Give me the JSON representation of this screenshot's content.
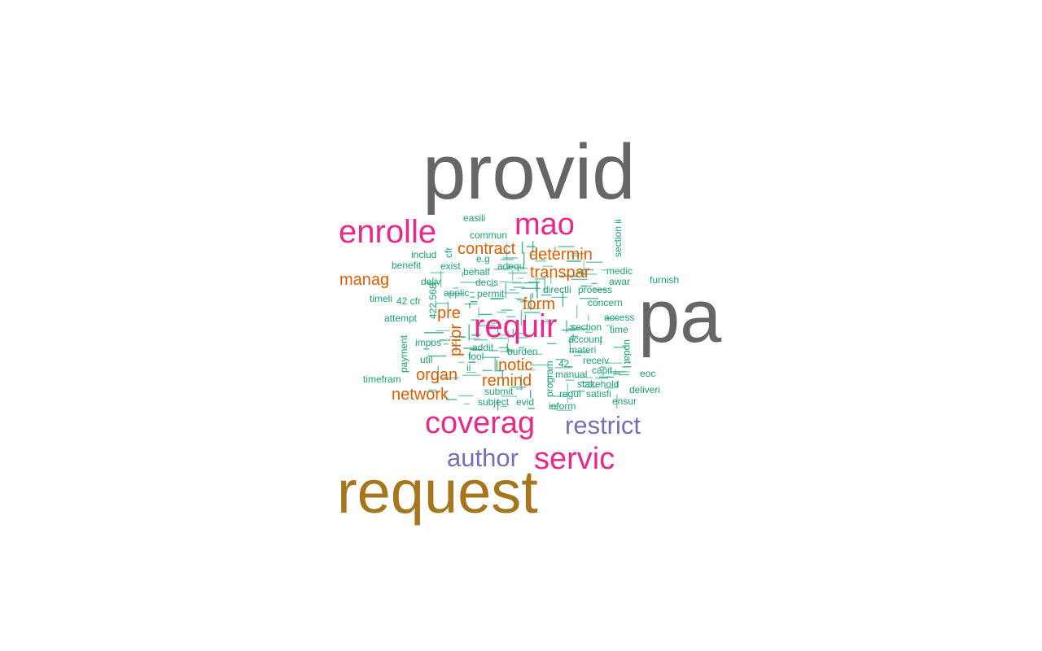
{
  "colors": {
    "background": "#ffffff",
    "tier1": "#666666",
    "tier2": "#a6761d",
    "tier3": "#e7298a",
    "tier4": "#7570b3",
    "tier5": "#d95f02",
    "tier6": "#1b9e77"
  },
  "words": [
    {
      "text": "provid",
      "color": "tier1"
    },
    {
      "text": "pa",
      "color": "tier1"
    },
    {
      "text": "request",
      "color": "tier2"
    },
    {
      "text": "enrolle",
      "color": "tier3"
    },
    {
      "text": "mao",
      "color": "tier3"
    },
    {
      "text": "requir",
      "color": "tier3"
    },
    {
      "text": "coverag",
      "color": "tier3"
    },
    {
      "text": "servic",
      "color": "tier3"
    },
    {
      "text": "restrict",
      "color": "tier4"
    },
    {
      "text": "author",
      "color": "tier4"
    },
    {
      "text": "contract",
      "color": "tier5"
    },
    {
      "text": "determin",
      "color": "tier5"
    },
    {
      "text": "transpar",
      "color": "tier5"
    },
    {
      "text": "manag",
      "color": "tier5"
    },
    {
      "text": "form",
      "color": "tier5"
    },
    {
      "text": "pre",
      "color": "tier5"
    },
    {
      "text": "prior",
      "color": "tier5"
    },
    {
      "text": "notic",
      "color": "tier5"
    },
    {
      "text": "remind",
      "color": "tier5"
    },
    {
      "text": "organ",
      "color": "tier5"
    },
    {
      "text": "network",
      "color": "tier5"
    },
    {
      "text": "easili",
      "color": "tier6"
    },
    {
      "text": "commun",
      "color": "tier6"
    },
    {
      "text": "includ",
      "color": "tier6"
    },
    {
      "text": "cfr",
      "color": "tier6"
    },
    {
      "text": "benefit",
      "color": "tier6"
    },
    {
      "text": "exist",
      "color": "tier6"
    },
    {
      "text": "e.g",
      "color": "tier6"
    },
    {
      "text": "adequ",
      "color": "tier6"
    },
    {
      "text": "deliv",
      "color": "tier6"
    },
    {
      "text": "decis",
      "color": "tier6"
    },
    {
      "text": "behalf",
      "color": "tier6"
    },
    {
      "text": "applic",
      "color": "tier6"
    },
    {
      "text": "permit",
      "color": "tier6"
    },
    {
      "text": "directli",
      "color": "tier6"
    },
    {
      "text": "process",
      "color": "tier6"
    },
    {
      "text": "timeli",
      "color": "tier6"
    },
    {
      "text": "42 cfr",
      "color": "tier6"
    },
    {
      "text": "422.568",
      "color": "tier6"
    },
    {
      "text": "attempt",
      "color": "tier6"
    },
    {
      "text": "payment",
      "color": "tier6"
    },
    {
      "text": "impos",
      "color": "tier6"
    },
    {
      "text": "addit",
      "color": "tier6"
    },
    {
      "text": "tool",
      "color": "tier6"
    },
    {
      "text": "util",
      "color": "tier6"
    },
    {
      "text": "ii",
      "color": "tier6"
    },
    {
      "text": "burden",
      "color": "tier6"
    },
    {
      "text": "materi",
      "color": "tier6"
    },
    {
      "text": "program",
      "color": "tier6"
    },
    {
      "text": "42",
      "color": "tier6"
    },
    {
      "text": "receiv",
      "color": "tier6"
    },
    {
      "text": "capit",
      "color": "tier6"
    },
    {
      "text": "manual",
      "color": "tier6"
    },
    {
      "text": "stakehold",
      "color": "tier6"
    },
    {
      "text": "submit",
      "color": "tier6"
    },
    {
      "text": "regul",
      "color": "tier6"
    },
    {
      "text": "satisfi",
      "color": "tier6"
    },
    {
      "text": "subject",
      "color": "tier6"
    },
    {
      "text": "evid",
      "color": "tier6"
    },
    {
      "text": "inform",
      "color": "tier6"
    },
    {
      "text": "ensur",
      "color": "tier6"
    },
    {
      "text": "timefram",
      "color": "tier6"
    },
    {
      "text": "section ii",
      "color": "tier6"
    },
    {
      "text": "medic",
      "color": "tier6"
    },
    {
      "text": "awar",
      "color": "tier6"
    },
    {
      "text": "furnish",
      "color": "tier6"
    },
    {
      "text": "concern",
      "color": "tier6"
    },
    {
      "text": "access",
      "color": "tier6"
    },
    {
      "text": "section",
      "color": "tier6"
    },
    {
      "text": "time",
      "color": "tier6"
    },
    {
      "text": "account",
      "color": "tier6"
    },
    {
      "text": "updat",
      "color": "tier6"
    },
    {
      "text": "eoc",
      "color": "tier6"
    },
    {
      "text": "deliveri",
      "color": "tier6"
    }
  ]
}
